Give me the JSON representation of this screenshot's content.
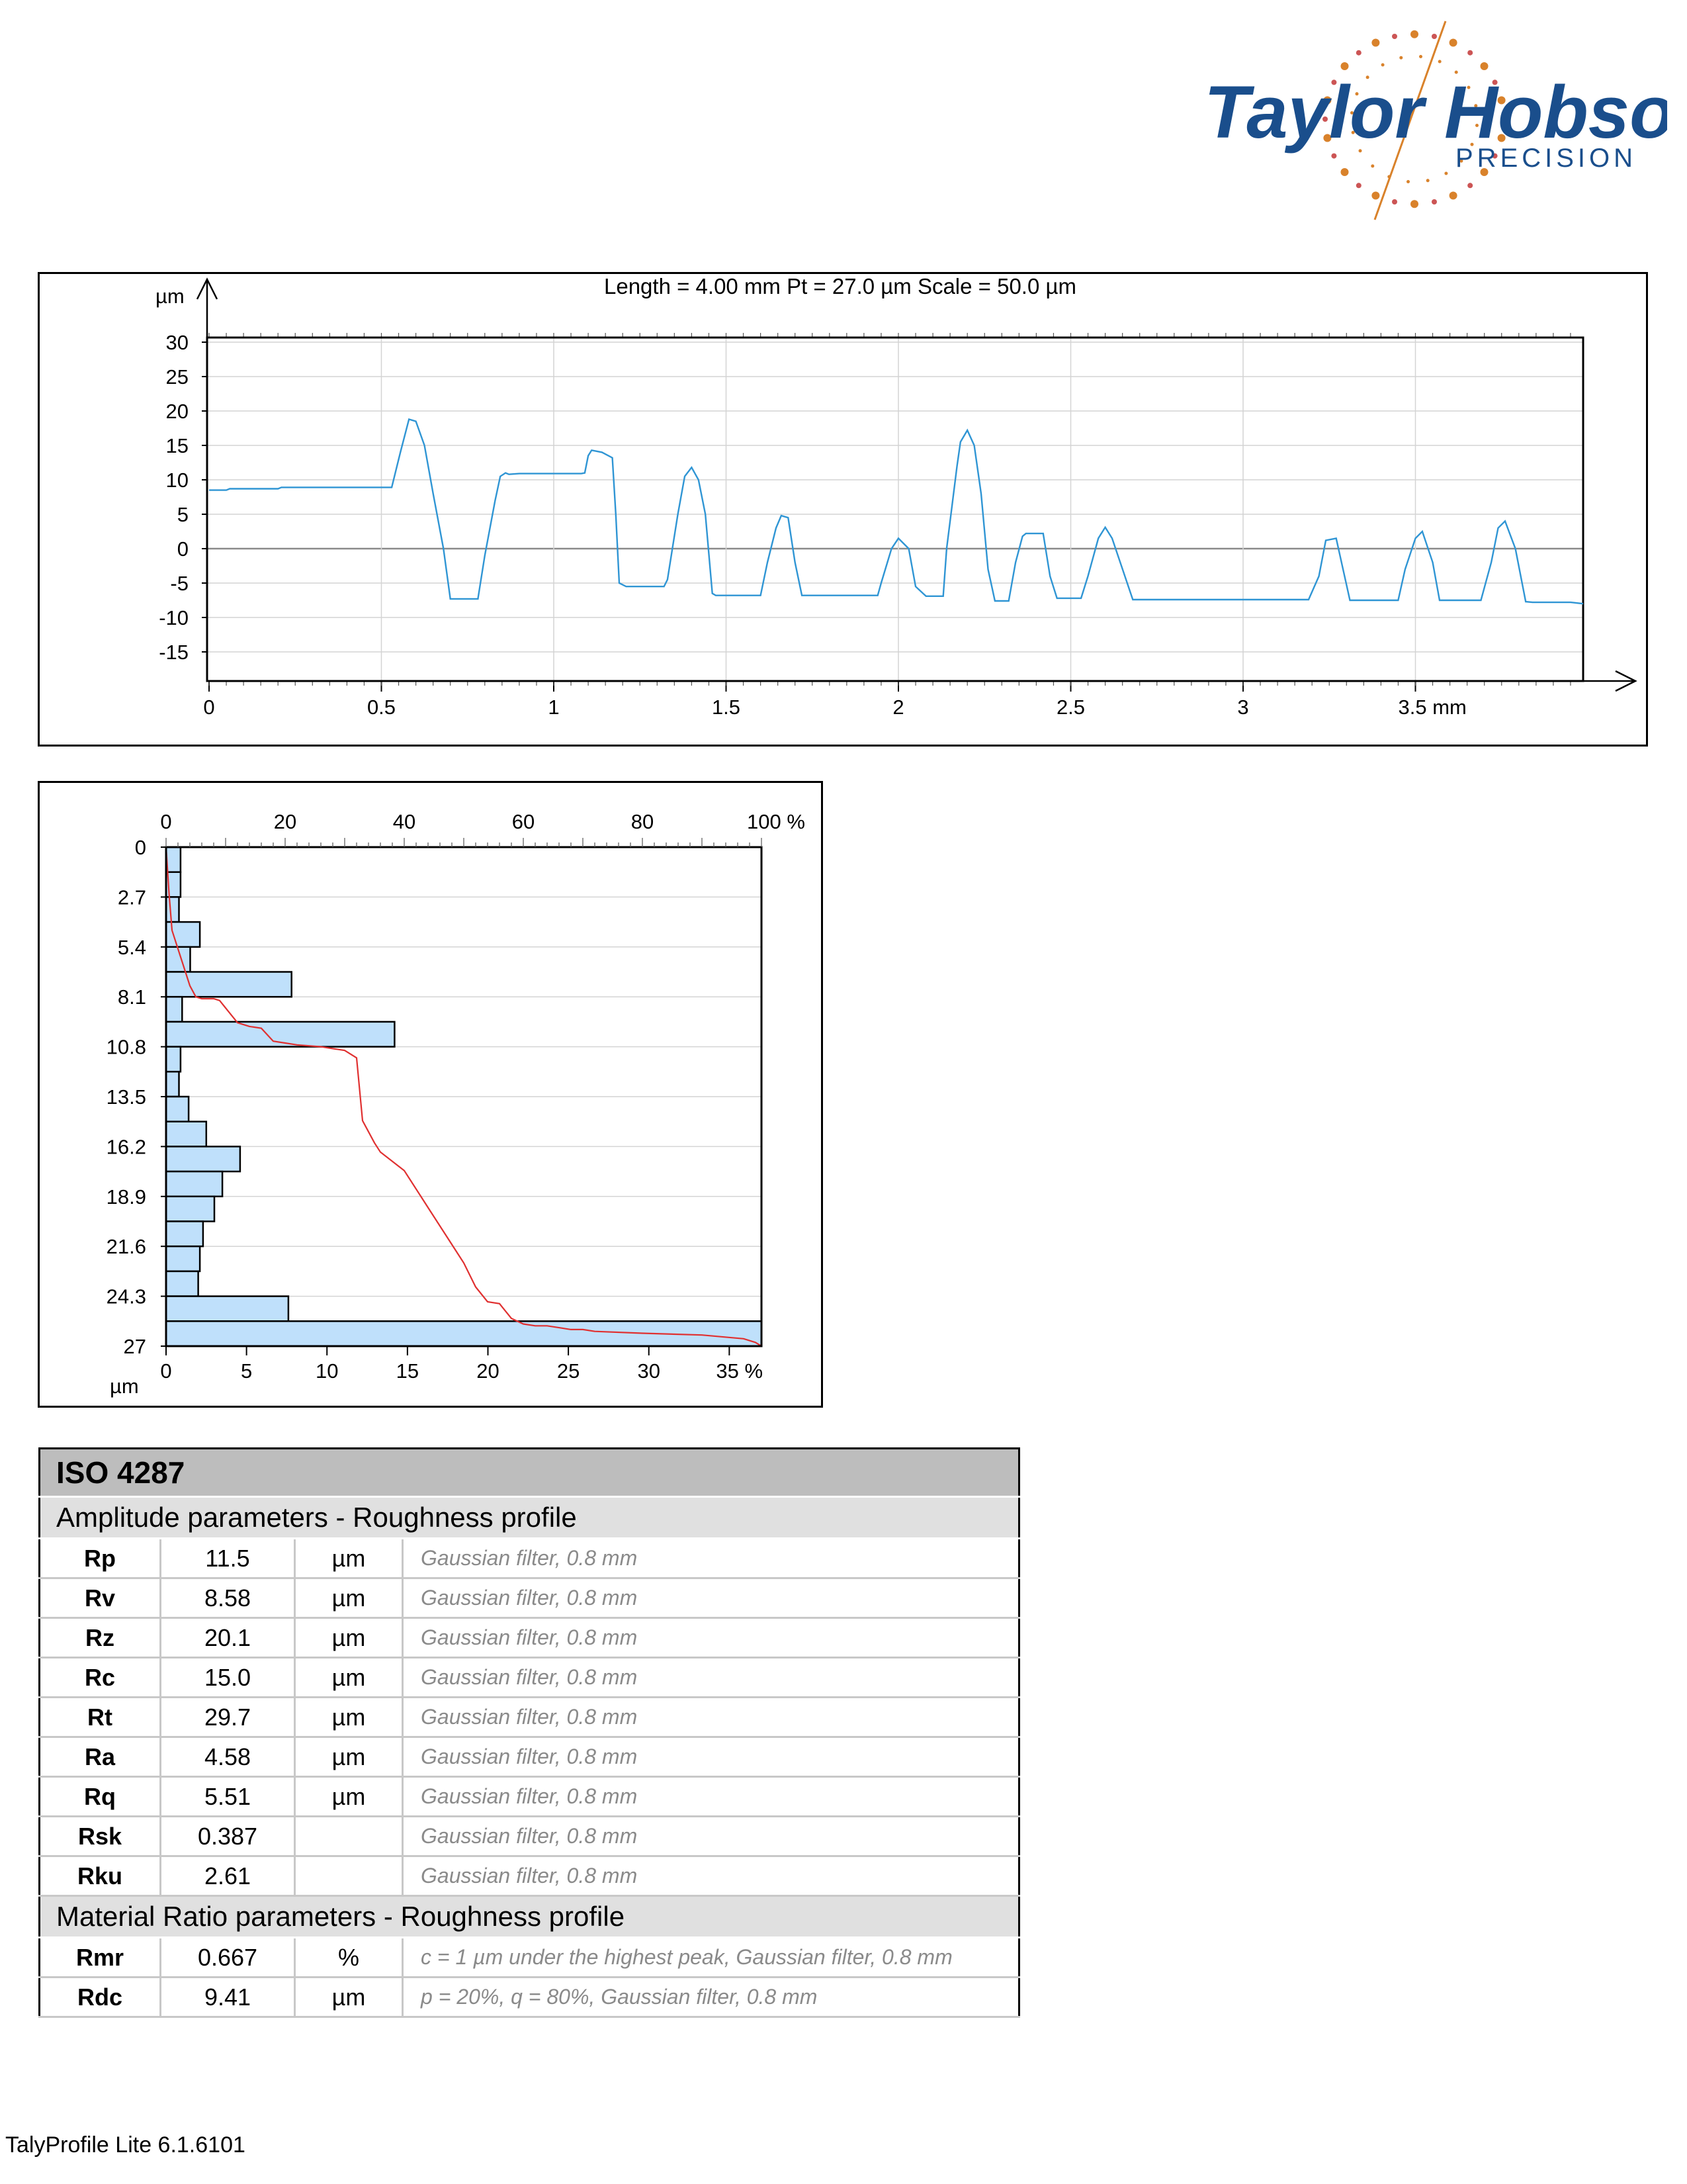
{
  "logo": {
    "name": "Taylor Hobson",
    "tagline": "PRECISION",
    "colors": {
      "text": "#1a4e8c",
      "accent": "#d9822b"
    }
  },
  "profile_chart": {
    "header": "Length = 4.00 mm  Pt = 27.0 µm  Scale = 50.0 µm",
    "y_unit": "µm",
    "x_unit_label": "3.5 mm",
    "y_ticks": [
      "30",
      "25",
      "20",
      "15",
      "10",
      "5",
      "0",
      "-5",
      "-10",
      "-15"
    ],
    "x_ticks": [
      "0",
      "0.5",
      "1",
      "1.5",
      "2",
      "2.5",
      "3",
      "3.5 mm"
    ],
    "line_color": "#2f95d4"
  },
  "histogram_chart": {
    "top_ticks": [
      "0",
      "20",
      "40",
      "60",
      "80",
      "100 %"
    ],
    "bottom_ticks": [
      "0",
      "5",
      "10",
      "15",
      "20",
      "25",
      "30",
      "35 %"
    ],
    "y_ticks": [
      "0",
      "2.7",
      "5.4",
      "8.1",
      "10.8",
      "13.5",
      "16.2",
      "18.9",
      "21.6",
      "24.3",
      "27"
    ],
    "y_unit": "µm",
    "bar_color": "#bfe0fb",
    "curve_color": "#e03030"
  },
  "chart_data": [
    {
      "type": "line",
      "header": "Length = 4.00 mm  Pt = 27.0 µm  Scale = 50.0 µm",
      "xlabel": "mm",
      "ylabel": "µm",
      "xlim": [
        0,
        4.0
      ],
      "ylim": [
        -20,
        30
      ],
      "grid": true,
      "series": [
        {
          "x": [
            0.0,
            0.05,
            0.06,
            0.2,
            0.21,
            0.53,
            0.555,
            0.58,
            0.6,
            0.625,
            0.65,
            0.68,
            0.7,
            0.78,
            0.8,
            0.83,
            0.845,
            0.86,
            0.87,
            0.9,
            1.08,
            1.09,
            1.1,
            1.11,
            1.14,
            1.17,
            1.18,
            1.19,
            1.21,
            1.32,
            1.33,
            1.36,
            1.38,
            1.4,
            1.42,
            1.44,
            1.46,
            1.47,
            1.6,
            1.62,
            1.645,
            1.66,
            1.68,
            1.7,
            1.72,
            1.94,
            1.95,
            1.98,
            2.0,
            2.03,
            2.05,
            2.08,
            2.08,
            2.1,
            2.13,
            2.14,
            2.17,
            2.18,
            2.2,
            2.22,
            2.24,
            2.26,
            2.28,
            2.32,
            2.34,
            2.36,
            2.37,
            2.42,
            2.44,
            2.46,
            2.52,
            2.53,
            2.55,
            2.58,
            2.6,
            2.62,
            2.68,
            2.7,
            2.72,
            2.74,
            2.76,
            2.8,
            2.82,
            2.84,
            3.0,
            3.19,
            3.22,
            3.24,
            3.27,
            3.29,
            3.31,
            3.45,
            3.47,
            3.5,
            3.52,
            3.55,
            3.57,
            3.69,
            3.72,
            3.74,
            3.76,
            3.79,
            3.82,
            3.84,
            3.95,
            4.0
          ],
          "y": [
            8.5,
            8.5,
            8.7,
            8.7,
            8.9,
            8.9,
            14.0,
            18.8,
            18.5,
            15.0,
            8.0,
            0.0,
            -7.3,
            -7.3,
            -1.0,
            7.0,
            10.5,
            11.0,
            10.8,
            10.9,
            10.9,
            11.0,
            13.5,
            14.3,
            14.0,
            13.2,
            5.0,
            -5.0,
            -5.5,
            -5.5,
            -4.5,
            5.0,
            10.5,
            11.8,
            10.0,
            5.0,
            -6.5,
            -6.8,
            -6.8,
            -2.0,
            3.0,
            4.8,
            4.5,
            -2.0,
            -6.8,
            -6.8,
            -5.0,
            0.0,
            1.5,
            0.0,
            -5.5,
            -6.9,
            -6.9,
            -6.9,
            -6.9,
            0.0,
            12.0,
            15.5,
            17.2,
            15.0,
            8.0,
            -3.0,
            -7.6,
            -7.6,
            -2.0,
            1.8,
            2.2,
            2.2,
            -4.0,
            -7.2,
            -7.2,
            -7.2,
            -4.0,
            1.5,
            3.1,
            1.5,
            -7.4,
            -7.4,
            -7.4,
            -7.4,
            -7.4,
            -7.4,
            -7.4,
            -7.4,
            -7.4,
            -7.4,
            -4.0,
            1.2,
            1.5,
            -3.0,
            -7.5,
            -7.5,
            -3.0,
            1.5,
            2.5,
            -2.0,
            -7.5,
            -7.5,
            -2.0,
            3.0,
            4.0,
            0.0,
            -7.7,
            -7.8,
            -7.8,
            -8.0
          ]
        }
      ]
    },
    {
      "type": "bar",
      "orientation": "horizontal",
      "xlabel": "%",
      "ylabel": "µm",
      "ylim": [
        0,
        27
      ],
      "bottom_xlim": [
        0,
        37
      ],
      "top_xlim": [
        0,
        100
      ],
      "bin_width": 1.35,
      "categories": [
        "0",
        "1.35",
        "2.7",
        "4.05",
        "5.4",
        "6.75",
        "8.1",
        "9.45",
        "10.8",
        "12.15",
        "13.5",
        "14.85",
        "16.2",
        "17.55",
        "18.9",
        "20.25",
        "21.6",
        "22.95",
        "24.3",
        "25.65"
      ],
      "values": [
        0.9,
        0.9,
        0.8,
        2.1,
        1.5,
        7.8,
        1.0,
        14.2,
        0.9,
        0.8,
        1.4,
        2.5,
        4.6,
        3.5,
        3.0,
        2.3,
        2.1,
        2.0,
        7.6,
        37.0
      ],
      "series": [
        {
          "name": "material ratio curve",
          "x": [
            0,
            0.5,
            1,
            2,
            3,
            4,
            5,
            6,
            8,
            9,
            10,
            12,
            14,
            16,
            18,
            20,
            22,
            26,
            30,
            32,
            33,
            35,
            36,
            38,
            40,
            42,
            44,
            46,
            48,
            50,
            52,
            54,
            56,
            58,
            60,
            62,
            64,
            66,
            68,
            70,
            72,
            80,
            90,
            97,
            99,
            100
          ],
          "y": [
            0,
            2.5,
            4.5,
            5.5,
            6.5,
            7.5,
            8.1,
            8.2,
            8.2,
            8.3,
            8.7,
            9.5,
            9.7,
            9.8,
            10.5,
            10.6,
            10.7,
            10.8,
            11.0,
            11.4,
            14.8,
            16.0,
            16.5,
            17.0,
            17.5,
            18.5,
            19.5,
            20.5,
            21.5,
            22.5,
            23.8,
            24.6,
            24.7,
            25.5,
            25.8,
            25.9,
            25.9,
            26.0,
            26.1,
            26.1,
            26.2,
            26.3,
            26.4,
            26.6,
            26.8,
            27.0
          ]
        }
      ]
    }
  ],
  "params_table": {
    "title": "ISO 4287",
    "sections": [
      {
        "heading": "Amplitude parameters - Roughness profile",
        "rows": [
          {
            "name": "Rp",
            "value": "11.5",
            "unit": "µm",
            "note": "Gaussian filter, 0.8 mm"
          },
          {
            "name": "Rv",
            "value": "8.58",
            "unit": "µm",
            "note": "Gaussian filter, 0.8 mm"
          },
          {
            "name": "Rz",
            "value": "20.1",
            "unit": "µm",
            "note": "Gaussian filter, 0.8 mm"
          },
          {
            "name": "Rc",
            "value": "15.0",
            "unit": "µm",
            "note": "Gaussian filter, 0.8 mm"
          },
          {
            "name": "Rt",
            "value": "29.7",
            "unit": "µm",
            "note": "Gaussian filter, 0.8 mm"
          },
          {
            "name": "Ra",
            "value": "4.58",
            "unit": "µm",
            "note": "Gaussian filter, 0.8 mm"
          },
          {
            "name": "Rq",
            "value": "5.51",
            "unit": "µm",
            "note": "Gaussian filter, 0.8 mm"
          },
          {
            "name": "Rsk",
            "value": "0.387",
            "unit": "",
            "note": "Gaussian filter, 0.8 mm"
          },
          {
            "name": "Rku",
            "value": "2.61",
            "unit": "",
            "note": "Gaussian filter, 0.8 mm"
          }
        ]
      },
      {
        "heading": "Material Ratio parameters - Roughness profile",
        "rows": [
          {
            "name": "Rmr",
            "value": "0.667",
            "unit": "%",
            "note": "c = 1 µm under the highest peak, Gaussian filter, 0.8 mm"
          },
          {
            "name": "Rdc",
            "value": "9.41",
            "unit": "µm",
            "note": "p = 20%, q = 80%, Gaussian filter, 0.8 mm"
          }
        ]
      }
    ]
  },
  "footer": {
    "version": "TalyProfile Lite 6.1.6101"
  }
}
